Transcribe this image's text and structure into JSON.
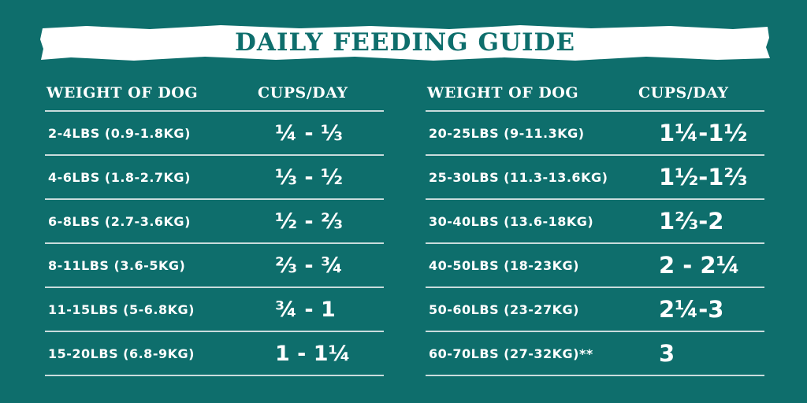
{
  "title": "DAILY FEEDING GUIDE",
  "left_table": {
    "headers": [
      "WEIGHT OF DOG",
      "CUPS/DAY"
    ],
    "rows": [
      {
        "weight": "2-4LBS (0.9-1.8KG)",
        "cups": "¼ - ⅓"
      },
      {
        "weight": "4-6LBS (1.8-2.7KG)",
        "cups": "⅓ - ½"
      },
      {
        "weight": "6-8LBS (2.7-3.6KG)",
        "cups": "½ - ⅔"
      },
      {
        "weight": "8-11LBS (3.6-5KG)",
        "cups": "⅔ - ¾"
      },
      {
        "weight": "11-15LBS (5-6.8KG)",
        "cups": "¾ - 1"
      },
      {
        "weight": "15-20LBS (6.8-9KG)",
        "cups": "1 - 1¼"
      }
    ]
  },
  "right_table": {
    "headers": [
      "WEIGHT OF DOG",
      "CUPS/DAY"
    ],
    "rows": [
      {
        "weight": "20-25LBS (9-11.3KG)",
        "cups": "1¼-1½"
      },
      {
        "weight": "25-30LBS (11.3-13.6KG)",
        "cups": "1½-1⅔"
      },
      {
        "weight": "30-40LBS (13.6-18KG)",
        "cups": "1⅔-2"
      },
      {
        "weight": "40-50LBS (18-23KG)",
        "cups": "2 - 2¼"
      },
      {
        "weight": "50-60LBS (23-27KG)",
        "cups": "2¼-3"
      },
      {
        "weight": "60-70LBS (27-32KG)**",
        "cups": "3"
      }
    ]
  },
  "colors": {
    "background": "#0e6e6c",
    "banner": "#ffffff",
    "text": "#ffffff",
    "rule": "#c9dcdc"
  }
}
